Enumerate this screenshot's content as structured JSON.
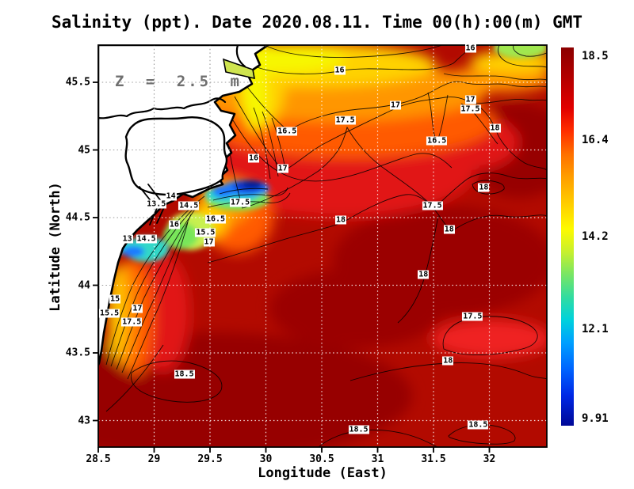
{
  "title": "Salinity (ppt). Date 2020.08.11. Time 00(h):00(m) GMT",
  "annotation": "Z = 2.5 m",
  "axes": {
    "xlabel": "Longitude (East)",
    "ylabel": "Latitude (North)",
    "x_ticks": [
      "28.5",
      "29",
      "29.5",
      "30",
      "30.5",
      "31",
      "31.5",
      "32"
    ],
    "x_tick_values": [
      28.5,
      29,
      29.5,
      30,
      30.5,
      31,
      31.5,
      32
    ],
    "y_ticks": [
      "45.5",
      "45",
      "44.5",
      "44",
      "43.5",
      "43"
    ],
    "y_tick_values": [
      45.5,
      45,
      44.5,
      44,
      43.5,
      43
    ],
    "x_range": [
      28.5,
      32.51
    ],
    "y_range": [
      42.79,
      45.78
    ]
  },
  "colorbar": {
    "labels": [
      "18.5",
      "16.4",
      "14.2",
      "12.1",
      "9.91"
    ],
    "values": [
      18.5,
      16.4,
      14.2,
      12.1,
      9.91
    ],
    "min": 9.91,
    "max": 18.5,
    "colormap": "jet"
  },
  "colors": {
    "land": "#ffffff",
    "coastline": "#000000",
    "grid_on_sea": "#ffffff",
    "grid_on_land": "#9a9a9a",
    "annotation_gray": "#6f6f6f",
    "max_red": "#8b0000",
    "min_blue": "#00008b"
  },
  "chart_data": {
    "type": "heatmap",
    "subtype": "filled_contour_map",
    "variable": "Salinity",
    "units": "ppt",
    "date": "2020.08.11",
    "time": "00(h):00(m) GMT",
    "depth_annotation": "Z = 2.5 m",
    "value_range": [
      9.91,
      18.5
    ],
    "contour_interval": 0.5,
    "levels": [
      13,
      13.5,
      14,
      14.5,
      15,
      15.5,
      16,
      16.5,
      17,
      17.5,
      18,
      18.5
    ],
    "grid": true,
    "legend_position": "right-colorbar",
    "xlabel": "Longitude (East)",
    "ylabel": "Latitude (North)",
    "xlim": [
      28.5,
      32.51
    ],
    "ylim": [
      42.79,
      45.78
    ],
    "contour_labels": [
      {
        "v": "16",
        "lon": 31.83,
        "lat": 45.75
      },
      {
        "v": "16",
        "lon": 30.66,
        "lat": 45.59
      },
      {
        "v": "17",
        "lon": 31.16,
        "lat": 45.33
      },
      {
        "v": "17",
        "lon": 31.83,
        "lat": 45.37
      },
      {
        "v": "17.5",
        "lon": 31.83,
        "lat": 45.3
      },
      {
        "v": "17.5",
        "lon": 30.71,
        "lat": 45.22
      },
      {
        "v": "16.5",
        "lon": 31.53,
        "lat": 45.07
      },
      {
        "v": "18",
        "lon": 32.05,
        "lat": 45.16
      },
      {
        "v": "16.5",
        "lon": 30.19,
        "lat": 45.14
      },
      {
        "v": "16",
        "lon": 29.89,
        "lat": 44.94
      },
      {
        "v": "17",
        "lon": 30.15,
        "lat": 44.86
      },
      {
        "v": "18",
        "lon": 31.95,
        "lat": 44.72
      },
      {
        "v": "17.5",
        "lon": 31.49,
        "lat": 44.59
      },
      {
        "v": "14",
        "lon": 29.15,
        "lat": 44.66
      },
      {
        "v": "13.5",
        "lon": 29.02,
        "lat": 44.6
      },
      {
        "v": "14.5",
        "lon": 29.31,
        "lat": 44.59
      },
      {
        "v": "17.5",
        "lon": 29.77,
        "lat": 44.61
      },
      {
        "v": "16.5",
        "lon": 29.55,
        "lat": 44.49
      },
      {
        "v": "16",
        "lon": 29.18,
        "lat": 44.45
      },
      {
        "v": "15.5",
        "lon": 29.46,
        "lat": 44.39
      },
      {
        "v": "17",
        "lon": 29.49,
        "lat": 44.32
      },
      {
        "v": "13",
        "lon": 28.76,
        "lat": 44.34
      },
      {
        "v": "14.5",
        "lon": 28.93,
        "lat": 44.34
      },
      {
        "v": "18",
        "lon": 30.67,
        "lat": 44.48
      },
      {
        "v": "18",
        "lon": 31.64,
        "lat": 44.41
      },
      {
        "v": "18",
        "lon": 31.41,
        "lat": 44.08
      },
      {
        "v": "15",
        "lon": 28.65,
        "lat": 43.9
      },
      {
        "v": "17",
        "lon": 28.85,
        "lat": 43.83
      },
      {
        "v": "15.5",
        "lon": 28.6,
        "lat": 43.79
      },
      {
        "v": "17.5",
        "lon": 28.8,
        "lat": 43.73
      },
      {
        "v": "18.5",
        "lon": 29.27,
        "lat": 43.34
      },
      {
        "v": "17.5",
        "lon": 31.85,
        "lat": 43.77
      },
      {
        "v": "18",
        "lon": 31.63,
        "lat": 43.44
      },
      {
        "v": "18.5",
        "lon": 30.83,
        "lat": 42.93
      },
      {
        "v": "18.5",
        "lon": 31.9,
        "lat": 42.97
      }
    ]
  }
}
